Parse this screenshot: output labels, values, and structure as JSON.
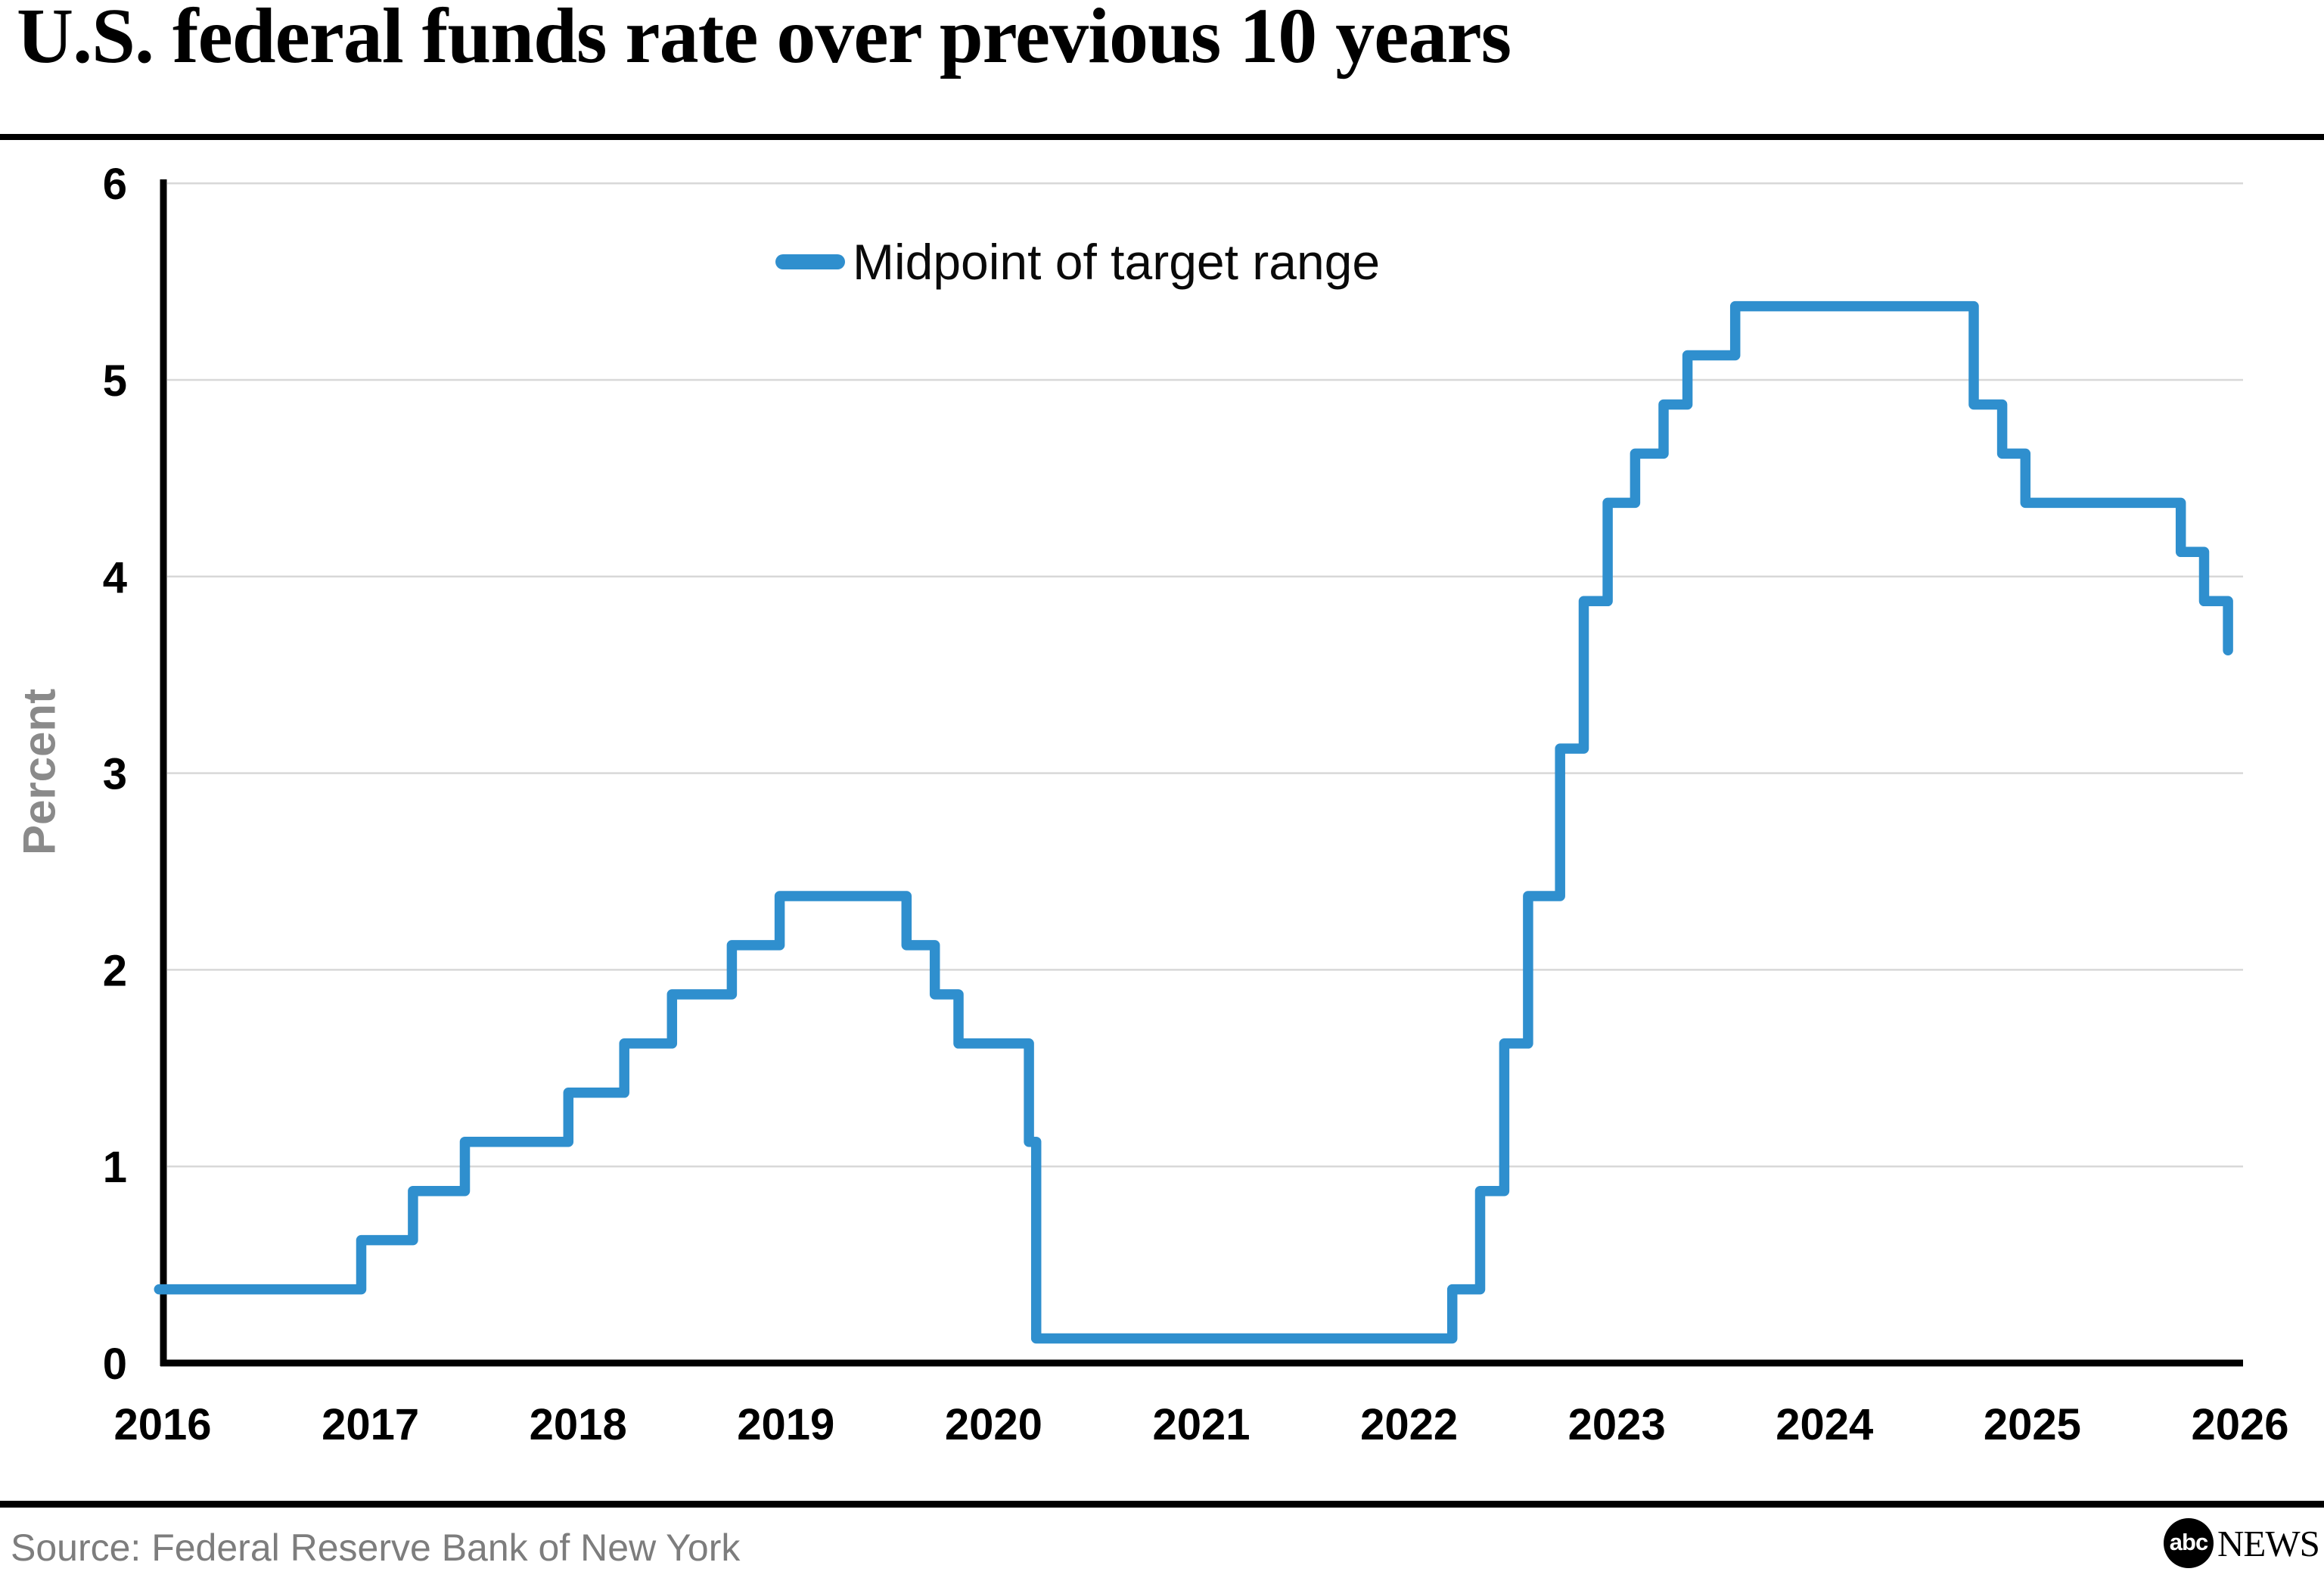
{
  "header": {
    "title": "U.S. federal funds rate over previous 10 years"
  },
  "legend": {
    "label": "Midpoint of target range"
  },
  "footer": {
    "source": "Source: Federal Reserve Bank of New York",
    "logo_abc": "abc",
    "logo_news": "NEWS"
  },
  "colors": {
    "line": "#2f8fce",
    "grid": "#d8d8d8",
    "axis": "#000000",
    "tick_text": "#000000",
    "muted_text": "#8a8a8a"
  },
  "chart_data": {
    "type": "line",
    "step": "after",
    "title": "U.S. federal funds rate over previous 10 years",
    "xlabel": "",
    "ylabel": "Percent",
    "legend_position": "top-center-inside",
    "grid": "horizontal",
    "xlim": [
      2015.983,
      2026.02
    ],
    "ylim": [
      0,
      6
    ],
    "x_ticks": [
      2016,
      2017,
      2018,
      2019,
      2020,
      2021,
      2022,
      2023,
      2024,
      2025,
      2026
    ],
    "y_ticks": [
      0,
      1,
      2,
      3,
      4,
      5,
      6
    ],
    "series": [
      {
        "name": "Midpoint of target range",
        "units": "percent",
        "points": [
          [
            2015.983,
            0.375
          ],
          [
            2016.956,
            0.625
          ],
          [
            2017.205,
            0.875
          ],
          [
            2017.455,
            1.125
          ],
          [
            2017.953,
            1.375
          ],
          [
            2018.222,
            1.625
          ],
          [
            2018.452,
            1.875
          ],
          [
            2018.74,
            2.125
          ],
          [
            2018.97,
            2.375
          ],
          [
            2019.581,
            2.125
          ],
          [
            2019.717,
            1.875
          ],
          [
            2019.831,
            1.625
          ],
          [
            2020.17,
            1.125
          ],
          [
            2020.205,
            0.125
          ],
          [
            2022.208,
            0.375
          ],
          [
            2022.342,
            0.875
          ],
          [
            2022.458,
            1.625
          ],
          [
            2022.573,
            2.375
          ],
          [
            2022.727,
            3.125
          ],
          [
            2022.841,
            3.875
          ],
          [
            2022.956,
            4.375
          ],
          [
            2023.088,
            4.625
          ],
          [
            2023.225,
            4.875
          ],
          [
            2023.34,
            5.125
          ],
          [
            2023.57,
            5.375
          ],
          [
            2024.718,
            4.875
          ],
          [
            2024.855,
            4.625
          ],
          [
            2024.967,
            4.375
          ],
          [
            2025.715,
            4.125
          ],
          [
            2025.827,
            3.875
          ],
          [
            2025.942,
            3.625
          ]
        ]
      }
    ]
  }
}
